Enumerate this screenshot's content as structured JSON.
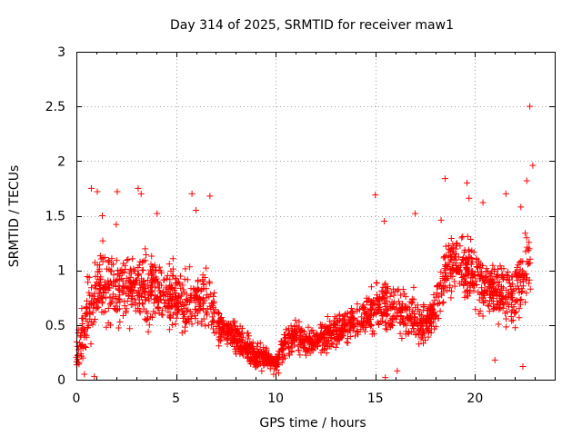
{
  "chart_data": {
    "type": "scatter",
    "title": "Day 314 of 2025, SRMTID for receiver maw1",
    "xlabel": "GPS time / hours",
    "ylabel": "SRMTID / TECUs",
    "xlim": [
      0,
      24
    ],
    "ylim": [
      0,
      3
    ],
    "x_ticks": [
      0,
      5,
      10,
      15,
      20
    ],
    "x_tick_labels": [
      "0",
      "5",
      "10",
      "15",
      "20"
    ],
    "y_ticks": [
      0,
      0.5,
      1,
      1.5,
      2,
      2.5,
      3
    ],
    "y_tick_labels": [
      "0",
      "0.5",
      "1",
      "1.5",
      "2",
      "2.5",
      "3"
    ],
    "grid": true,
    "marker": "+",
    "series": [
      {
        "name": "SRMTID",
        "color": "#ff0000",
        "profile": [
          [
            0.0,
            0.25,
            0.2
          ],
          [
            0.5,
            0.55,
            0.35
          ],
          [
            1.0,
            0.8,
            0.35
          ],
          [
            1.5,
            0.85,
            0.35
          ],
          [
            2.0,
            0.85,
            0.35
          ],
          [
            2.5,
            0.8,
            0.35
          ],
          [
            3.0,
            0.85,
            0.35
          ],
          [
            3.5,
            0.85,
            0.35
          ],
          [
            4.0,
            0.8,
            0.3
          ],
          [
            4.5,
            0.8,
            0.3
          ],
          [
            5.0,
            0.75,
            0.3
          ],
          [
            5.5,
            0.7,
            0.3
          ],
          [
            6.0,
            0.75,
            0.3
          ],
          [
            6.5,
            0.8,
            0.35
          ],
          [
            7.0,
            0.5,
            0.2
          ],
          [
            7.5,
            0.45,
            0.15
          ],
          [
            8.0,
            0.4,
            0.15
          ],
          [
            8.5,
            0.3,
            0.15
          ],
          [
            9.0,
            0.2,
            0.12
          ],
          [
            9.5,
            0.2,
            0.1
          ],
          [
            10.0,
            0.15,
            0.08
          ],
          [
            10.5,
            0.35,
            0.15
          ],
          [
            11.0,
            0.4,
            0.15
          ],
          [
            11.5,
            0.35,
            0.15
          ],
          [
            12.0,
            0.35,
            0.15
          ],
          [
            12.5,
            0.4,
            0.15
          ],
          [
            13.0,
            0.45,
            0.15
          ],
          [
            13.5,
            0.5,
            0.18
          ],
          [
            14.0,
            0.5,
            0.18
          ],
          [
            14.5,
            0.6,
            0.2
          ],
          [
            15.0,
            0.65,
            0.25
          ],
          [
            15.5,
            0.7,
            0.3
          ],
          [
            16.0,
            0.65,
            0.25
          ],
          [
            16.5,
            0.6,
            0.22
          ],
          [
            17.0,
            0.55,
            0.22
          ],
          [
            17.5,
            0.5,
            0.2
          ],
          [
            18.0,
            0.6,
            0.22
          ],
          [
            18.5,
            1.0,
            0.3
          ],
          [
            19.0,
            1.1,
            0.3
          ],
          [
            19.5,
            1.0,
            0.3
          ],
          [
            20.0,
            0.95,
            0.3
          ],
          [
            20.5,
            0.85,
            0.3
          ],
          [
            21.0,
            0.8,
            0.3
          ],
          [
            21.5,
            0.8,
            0.3
          ],
          [
            22.0,
            0.75,
            0.35
          ],
          [
            22.5,
            0.95,
            0.4
          ],
          [
            22.8,
            1.0,
            0.4
          ]
        ],
        "points": [
          [
            22.75,
            2.5
          ],
          [
            22.9,
            1.96
          ],
          [
            22.6,
            1.82
          ],
          [
            18.5,
            1.84
          ],
          [
            19.6,
            1.8
          ],
          [
            0.75,
            1.75
          ],
          [
            1.05,
            1.72
          ],
          [
            2.05,
            1.72
          ],
          [
            3.1,
            1.75
          ],
          [
            3.25,
            1.7
          ],
          [
            5.8,
            1.7
          ],
          [
            6.7,
            1.68
          ],
          [
            15.0,
            1.69
          ],
          [
            21.55,
            1.7
          ],
          [
            19.7,
            1.66
          ],
          [
            20.4,
            1.62
          ],
          [
            2.0,
            1.42
          ],
          [
            1.3,
            1.5
          ],
          [
            4.05,
            1.52
          ],
          [
            17.0,
            1.52
          ],
          [
            15.45,
            1.45
          ],
          [
            18.3,
            1.46
          ],
          [
            6.0,
            1.55
          ],
          [
            22.3,
            1.58
          ],
          [
            9.9,
            0.05
          ],
          [
            15.5,
            0.02
          ],
          [
            9.3,
            0.08
          ],
          [
            10.15,
            0.06
          ],
          [
            0.4,
            0.05
          ],
          [
            0.9,
            0.03
          ],
          [
            16.1,
            0.08
          ],
          [
            22.4,
            0.12
          ],
          [
            21.0,
            0.18
          ]
        ]
      }
    ]
  }
}
